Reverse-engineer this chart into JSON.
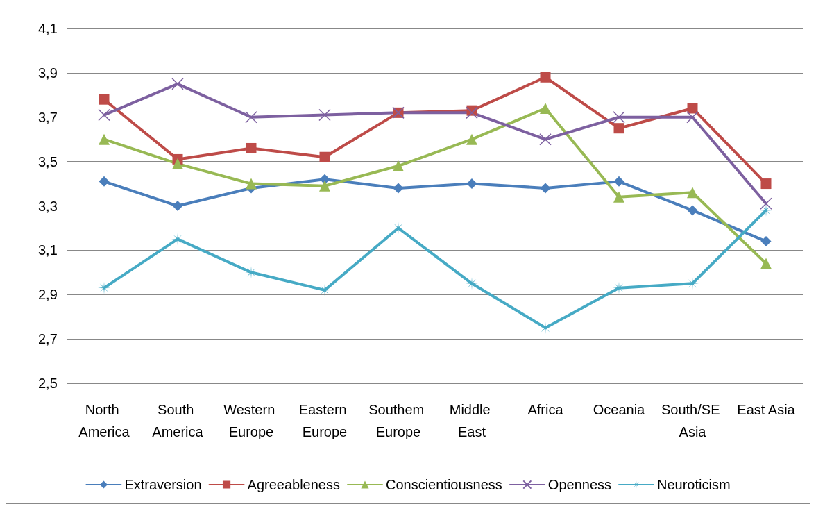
{
  "chart_data": {
    "type": "line",
    "categories": [
      "North America",
      "South America",
      "Western Europe",
      "Eastern Europe",
      "Southem Europe",
      "Middle East",
      "Africa",
      "Oceania",
      "South/SE Asia",
      "East Asia"
    ],
    "series": [
      {
        "name": "Extraversion",
        "color": "#4a7ebb",
        "marker": "diamond",
        "values": [
          3.41,
          3.3,
          3.38,
          3.42,
          3.38,
          3.4,
          3.38,
          3.41,
          3.28,
          3.14
        ]
      },
      {
        "name": "Agreeableness",
        "color": "#be4b48",
        "marker": "square",
        "values": [
          3.78,
          3.51,
          3.56,
          3.52,
          3.72,
          3.73,
          3.88,
          3.65,
          3.74,
          3.4
        ]
      },
      {
        "name": "Conscientiousness",
        "color": "#98b954",
        "marker": "triangle",
        "values": [
          3.6,
          3.49,
          3.4,
          3.39,
          3.48,
          3.6,
          3.74,
          3.34,
          3.36,
          3.04
        ]
      },
      {
        "name": "Openness",
        "color": "#7d60a0",
        "marker": "cross",
        "values": [
          3.71,
          3.85,
          3.7,
          3.71,
          3.72,
          3.72,
          3.6,
          3.7,
          3.7,
          3.31
        ]
      },
      {
        "name": "Neuroticism",
        "color": "#46aac5",
        "marker": "star",
        "values": [
          2.93,
          3.15,
          3.0,
          2.92,
          3.2,
          2.95,
          2.75,
          2.93,
          2.95,
          3.28
        ]
      }
    ],
    "ylim": [
      2.5,
      4.1
    ],
    "yticks": [
      {
        "value": 2.5,
        "label": "2,5"
      },
      {
        "value": 2.7,
        "label": "2,7"
      },
      {
        "value": 2.9,
        "label": "2,9"
      },
      {
        "value": 3.1,
        "label": "3,1"
      },
      {
        "value": 3.3,
        "label": "3,3"
      },
      {
        "value": 3.5,
        "label": "3,5"
      },
      {
        "value": 3.7,
        "label": "3,7"
      },
      {
        "value": 3.9,
        "label": "3,9"
      },
      {
        "value": 4.1,
        "label": "4,1"
      }
    ],
    "grid": "y",
    "legend": "bottom",
    "line_style": "solid"
  }
}
